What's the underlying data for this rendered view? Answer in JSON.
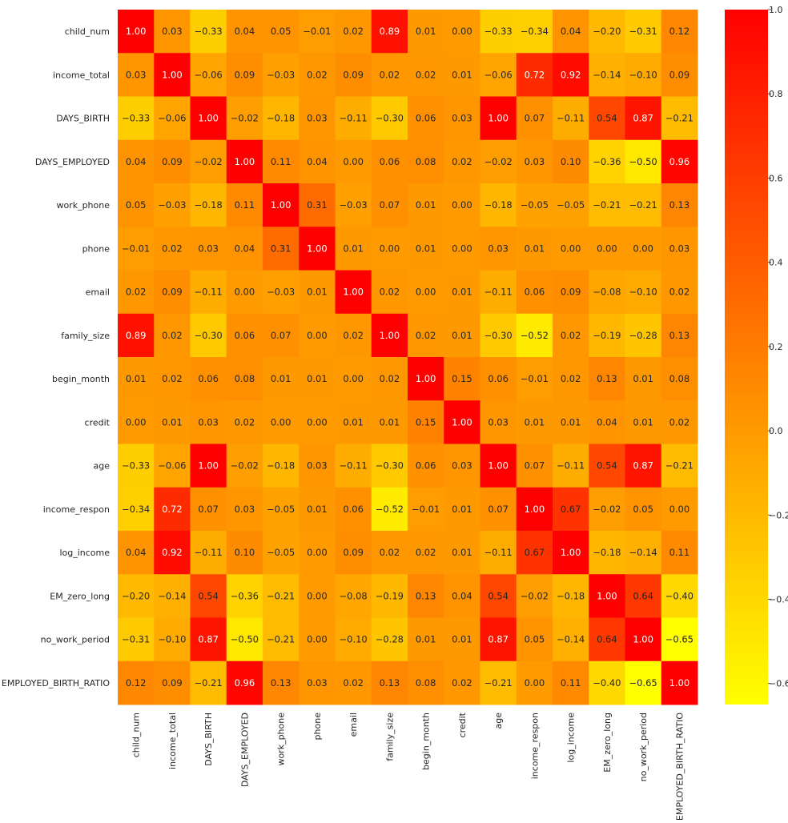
{
  "chart_data": {
    "type": "heatmap",
    "title": "",
    "colormap": "autumn_r",
    "vmin": -0.65,
    "vmax": 1.0,
    "colorbar_ticks": [
      "1.0",
      "0.8",
      "0.6",
      "0.4",
      "0.2",
      "0.0",
      "−0.2",
      "−0.4",
      "−0.6"
    ],
    "colorbar_tick_values": [
      1.0,
      0.8,
      0.6,
      0.4,
      0.2,
      0.0,
      -0.2,
      -0.4,
      -0.6
    ],
    "row_labels": [
      "child_num",
      "income_total",
      "DAYS_BIRTH",
      "DAYS_EMPLOYED",
      "work_phone",
      "phone",
      "email",
      "family_size",
      "begin_month",
      "credit",
      "age",
      "income_respon",
      "log_income",
      "EM_zero_long",
      "no_work_period",
      "EMPLOYED_BIRTH_RATIO"
    ],
    "col_labels": [
      "child_num",
      "income_total",
      "DAYS_BIRTH",
      "DAYS_EMPLOYED",
      "work_phone",
      "phone",
      "email",
      "family_size",
      "begin_month",
      "credit",
      "age",
      "income_respon",
      "log_income",
      "EM_zero_long",
      "no_work_period",
      "EMPLOYED_BIRTH_RATIO"
    ],
    "values": [
      [
        1.0,
        0.03,
        -0.33,
        0.04,
        0.05,
        -0.01,
        0.02,
        0.89,
        0.01,
        0.0,
        -0.33,
        -0.34,
        0.04,
        -0.2,
        -0.31,
        0.12
      ],
      [
        0.03,
        1.0,
        -0.06,
        0.09,
        -0.03,
        0.02,
        0.09,
        0.02,
        0.02,
        0.01,
        -0.06,
        0.72,
        0.92,
        -0.14,
        -0.1,
        0.09
      ],
      [
        -0.33,
        -0.06,
        1.0,
        -0.02,
        -0.18,
        0.03,
        -0.11,
        -0.3,
        0.06,
        0.03,
        1.0,
        0.07,
        -0.11,
        0.54,
        0.87,
        -0.21
      ],
      [
        0.04,
        0.09,
        -0.02,
        1.0,
        0.11,
        0.04,
        0.0,
        0.06,
        0.08,
        0.02,
        -0.02,
        0.03,
        0.1,
        -0.36,
        -0.5,
        0.96
      ],
      [
        0.05,
        -0.03,
        -0.18,
        0.11,
        1.0,
        0.31,
        -0.03,
        0.07,
        0.01,
        -0.0,
        -0.18,
        -0.05,
        -0.05,
        -0.21,
        -0.21,
        0.13
      ],
      [
        -0.01,
        0.02,
        0.03,
        0.04,
        0.31,
        1.0,
        0.01,
        -0.0,
        0.01,
        0.0,
        0.03,
        0.01,
        0.0,
        -0.0,
        0.0,
        0.03
      ],
      [
        0.02,
        0.09,
        -0.11,
        0.0,
        -0.03,
        0.01,
        1.0,
        0.02,
        -0.0,
        0.01,
        -0.11,
        0.06,
        0.09,
        -0.08,
        -0.1,
        0.02
      ],
      [
        0.89,
        0.02,
        -0.3,
        0.06,
        0.07,
        -0.0,
        0.02,
        1.0,
        0.02,
        0.01,
        -0.3,
        -0.52,
        0.02,
        -0.19,
        -0.28,
        0.13
      ],
      [
        0.01,
        0.02,
        0.06,
        0.08,
        0.01,
        0.01,
        -0.0,
        0.02,
        1.0,
        0.15,
        0.06,
        -0.01,
        0.02,
        0.13,
        0.01,
        0.08
      ],
      [
        0.0,
        0.01,
        0.03,
        0.02,
        -0.0,
        0.0,
        0.01,
        0.01,
        0.15,
        1.0,
        0.03,
        0.01,
        0.01,
        0.04,
        0.01,
        0.02
      ],
      [
        -0.33,
        -0.06,
        1.0,
        -0.02,
        -0.18,
        0.03,
        -0.11,
        -0.3,
        0.06,
        0.03,
        1.0,
        0.07,
        -0.11,
        0.54,
        0.87,
        -0.21
      ],
      [
        -0.34,
        0.72,
        0.07,
        0.03,
        -0.05,
        0.01,
        0.06,
        -0.52,
        -0.01,
        0.01,
        0.07,
        1.0,
        0.67,
        -0.02,
        0.05,
        0.0
      ],
      [
        0.04,
        0.92,
        -0.11,
        0.1,
        -0.05,
        0.0,
        0.09,
        0.02,
        0.02,
        0.01,
        -0.11,
        0.67,
        1.0,
        -0.18,
        -0.14,
        0.11
      ],
      [
        -0.2,
        -0.14,
        0.54,
        -0.36,
        -0.21,
        -0.0,
        -0.08,
        -0.19,
        0.13,
        0.04,
        0.54,
        -0.02,
        -0.18,
        1.0,
        0.64,
        -0.4
      ],
      [
        -0.31,
        -0.1,
        0.87,
        -0.5,
        -0.21,
        0.0,
        -0.1,
        -0.28,
        0.01,
        0.01,
        0.87,
        0.05,
        -0.14,
        0.64,
        1.0,
        -0.65
      ],
      [
        0.12,
        0.09,
        -0.21,
        0.96,
        0.13,
        0.03,
        0.02,
        0.13,
        0.08,
        0.02,
        -0.21,
        0.0,
        0.11,
        -0.4,
        -0.65,
        1.0
      ]
    ]
  }
}
